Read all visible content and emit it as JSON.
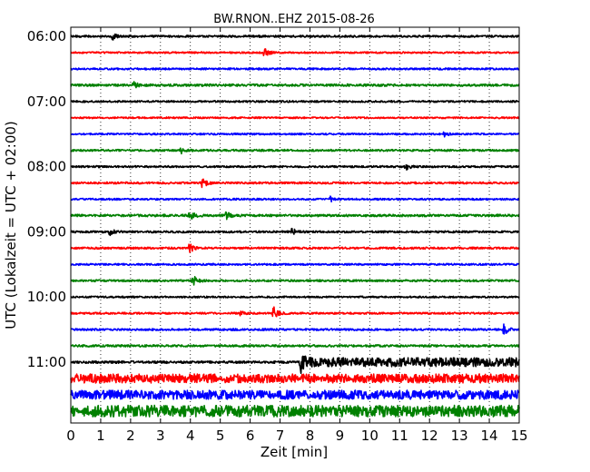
{
  "chart_data": {
    "type": "line",
    "title": "BW.RNON..EHZ 2015-08-26",
    "xlabel": "Zeit  [min]",
    "ylabel": "UTC (Lokalzeit = UTC + 02:00)",
    "xlim": [
      0,
      15
    ],
    "x_ticks": [
      0,
      1,
      2,
      3,
      4,
      5,
      6,
      7,
      8,
      9,
      10,
      11,
      12,
      13,
      14,
      15
    ],
    "x_tick_labels": [
      "0",
      "1",
      "2",
      "3",
      "4",
      "5",
      "6",
      "7",
      "8",
      "9",
      "10",
      "11",
      "12",
      "13",
      "14",
      "15"
    ],
    "y_tick_labels": [
      "06:00",
      "07:00",
      "08:00",
      "09:00",
      "10:00",
      "11:00"
    ],
    "row_interval_minutes": 15,
    "grid": "x-dotted",
    "legend": "none",
    "colors": [
      "#000000",
      "#ff0000",
      "#0000ff",
      "#008000"
    ],
    "series": [
      {
        "start": "06:00",
        "color": "#000000",
        "noise": 0.12,
        "events": [
          [
            1.4,
            0.45
          ]
        ]
      },
      {
        "start": "06:15",
        "color": "#ff0000",
        "noise": 0.1,
        "events": [
          [
            6.5,
            0.55
          ]
        ]
      },
      {
        "start": "06:30",
        "color": "#0000ff",
        "noise": 0.11,
        "events": []
      },
      {
        "start": "06:45",
        "color": "#008000",
        "noise": 0.14,
        "events": [
          [
            2.1,
            0.35
          ]
        ]
      },
      {
        "start": "07:00",
        "color": "#000000",
        "noise": 0.11,
        "events": []
      },
      {
        "start": "07:15",
        "color": "#ff0000",
        "noise": 0.1,
        "events": []
      },
      {
        "start": "07:30",
        "color": "#0000ff",
        "noise": 0.1,
        "events": [
          [
            12.5,
            0.25
          ]
        ]
      },
      {
        "start": "07:45",
        "color": "#008000",
        "noise": 0.12,
        "events": [
          [
            3.7,
            0.3
          ]
        ]
      },
      {
        "start": "08:00",
        "color": "#000000",
        "noise": 0.11,
        "events": [
          [
            11.2,
            0.4
          ]
        ]
      },
      {
        "start": "08:15",
        "color": "#ff0000",
        "noise": 0.12,
        "events": [
          [
            4.4,
            0.75
          ]
        ]
      },
      {
        "start": "08:30",
        "color": "#0000ff",
        "noise": 0.11,
        "events": [
          [
            8.7,
            0.4
          ]
        ]
      },
      {
        "start": "08:45",
        "color": "#008000",
        "noise": 0.14,
        "events": [
          [
            4.0,
            0.55
          ],
          [
            5.2,
            0.45
          ]
        ]
      },
      {
        "start": "09:00",
        "color": "#000000",
        "noise": 0.12,
        "events": [
          [
            1.3,
            0.4
          ],
          [
            7.4,
            0.4
          ]
        ]
      },
      {
        "start": "09:15",
        "color": "#ff0000",
        "noise": 0.12,
        "events": [
          [
            4.0,
            0.55
          ]
        ]
      },
      {
        "start": "09:30",
        "color": "#0000ff",
        "noise": 0.11,
        "events": []
      },
      {
        "start": "09:45",
        "color": "#008000",
        "noise": 0.12,
        "events": [
          [
            4.1,
            0.65
          ]
        ]
      },
      {
        "start": "10:00",
        "color": "#000000",
        "noise": 0.1,
        "events": []
      },
      {
        "start": "10:15",
        "color": "#ff0000",
        "noise": 0.11,
        "events": [
          [
            6.8,
            0.85
          ],
          [
            5.7,
            0.3
          ]
        ]
      },
      {
        "start": "10:30",
        "color": "#0000ff",
        "noise": 0.12,
        "events": [
          [
            14.5,
            0.65
          ]
        ]
      },
      {
        "start": "10:45",
        "color": "#008000",
        "noise": 0.13,
        "events": []
      },
      {
        "start": "11:00",
        "color": "#000000",
        "noise": 0.14,
        "events": [
          [
            7.7,
            0.9
          ]
        ],
        "late_noise": [
          7.7,
          0.55
        ]
      },
      {
        "start": "11:15",
        "color": "#ff0000",
        "noise": 0.55,
        "events": []
      },
      {
        "start": "11:30",
        "color": "#0000ff",
        "noise": 0.55,
        "events": []
      },
      {
        "start": "11:45",
        "color": "#008000",
        "noise": 0.7,
        "events": []
      }
    ]
  }
}
